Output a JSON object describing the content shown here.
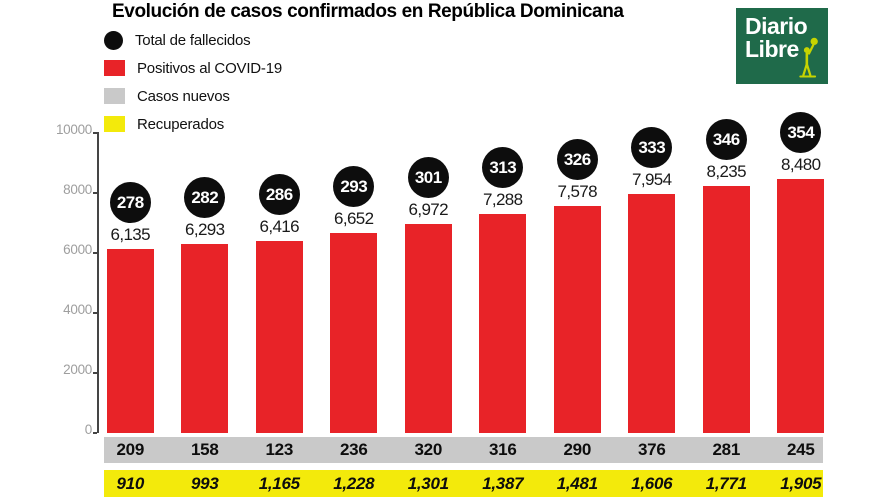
{
  "title": "Evolución de casos confirmados en República Dominicana",
  "logo": {
    "line1": "Diario",
    "line2": "Libre"
  },
  "colors": {
    "positives": "#e82328",
    "deaths": "#0d0d0d",
    "new_cases": "#c9c9c9",
    "recovered": "#f3ea0b",
    "logo_green": "#1f6a4a",
    "logo_figure": "#c6d400",
    "axis_label": "#9e9e9e",
    "axis_line": "#454545"
  },
  "legend": [
    {
      "label": "Total de fallecidos",
      "swatch": "circle",
      "color_key": "deaths"
    },
    {
      "label": "Positivos al COVID-19",
      "swatch": "square",
      "color_key": "positives"
    },
    {
      "label": "Casos nuevos",
      "swatch": "square",
      "color_key": "new_cases"
    },
    {
      "label": "Recuperados",
      "swatch": "square",
      "color_key": "recovered"
    }
  ],
  "chart_data": {
    "type": "bar",
    "title": "Evolución de casos confirmados en República Dominicana",
    "xlabel": "",
    "ylabel": "",
    "grid": false,
    "legend_position": "top-left",
    "y_axis": {
      "min": 0,
      "max": 10000,
      "tick_labels": [
        "10000",
        "8000",
        "6000",
        "4000",
        "2000",
        "0"
      ]
    },
    "series": [
      {
        "name": "Total de fallecidos",
        "render": "circle-badges",
        "color_key": "deaths",
        "values": [
          278,
          282,
          286,
          293,
          301,
          313,
          326,
          333,
          346,
          354
        ]
      },
      {
        "name": "Positivos al COVID-19",
        "render": "bars",
        "color_key": "positives",
        "values": [
          6135,
          6293,
          6416,
          6652,
          6972,
          7288,
          7578,
          7954,
          8235,
          8480
        ],
        "labels": [
          "6,135",
          "6,293",
          "6,416",
          "6,652",
          "6,972",
          "7,288",
          "7,578",
          "7,954",
          "8,235",
          "8,480"
        ]
      },
      {
        "name": "Casos nuevos",
        "render": "band",
        "color_key": "new_cases",
        "values": [
          209,
          158,
          123,
          236,
          320,
          316,
          290,
          376,
          281,
          245
        ],
        "labels": [
          "209",
          "158",
          "123",
          "236",
          "320",
          "316",
          "290",
          "376",
          "281",
          "245"
        ]
      },
      {
        "name": "Recuperados",
        "render": "band",
        "color_key": "recovered",
        "values": [
          910,
          993,
          1165,
          1228,
          1301,
          1387,
          1481,
          1606,
          1771,
          1905
        ],
        "labels": [
          "910",
          "993",
          "1,165",
          "1,228",
          "1,301",
          "1,387",
          "1,481",
          "1,606",
          "1,771",
          "1,905"
        ]
      }
    ]
  }
}
